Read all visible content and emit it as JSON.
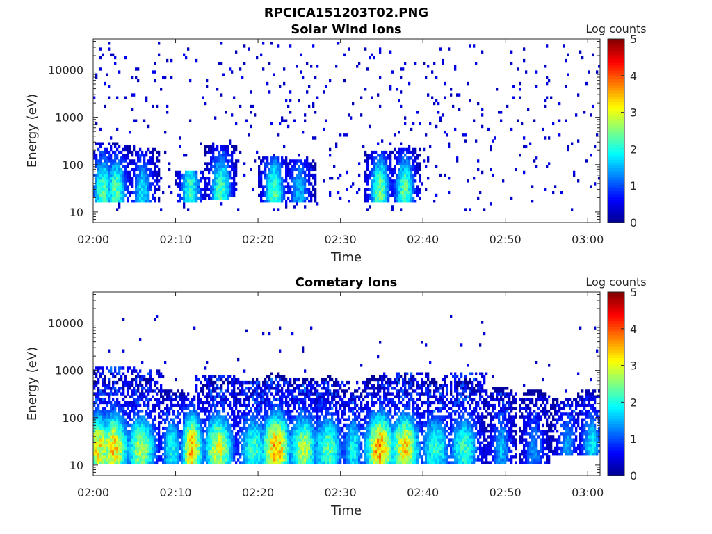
{
  "figure": {
    "title": "RPCICA151203T02.PNG"
  },
  "colormap": [
    "#00008f",
    "#0000ff",
    "#0080ff",
    "#00ffff",
    "#80ff80",
    "#ffff00",
    "#ff8000",
    "#ff0000",
    "#800000"
  ],
  "chart_data": [
    {
      "type": "heatmap",
      "title": "Solar Wind Ions",
      "xlabel": "Time",
      "ylabel": "Energy (eV)",
      "x_ticks": [
        "02:00",
        "02:10",
        "02:20",
        "02:30",
        "02:40",
        "02:50",
        "03:00"
      ],
      "x_tick_minutes": [
        0,
        10,
        20,
        30,
        40,
        50,
        60
      ],
      "xlim_minutes": [
        0,
        61.5
      ],
      "y_ticks": [
        "10",
        "100",
        "1000",
        "10000"
      ],
      "y_tick_values": [
        10,
        100,
        1000,
        10000
      ],
      "ylim": [
        6,
        45000
      ],
      "yscale": "log",
      "colorbar": {
        "label": "Log counts",
        "ticks": [
          "0",
          "1",
          "2",
          "3",
          "4",
          "5"
        ],
        "range": [
          0,
          5
        ]
      },
      "background_noise": {
        "energy_range": [
          10,
          40000
        ],
        "log_counts": 0.2
      },
      "clusters": [
        {
          "t": 1.2,
          "e_low": 20,
          "e_high": 220,
          "peak": 2.3
        },
        {
          "t": 2.8,
          "e_low": 18,
          "e_high": 200,
          "peak": 2.4
        },
        {
          "t": 6.0,
          "e_low": 18,
          "e_high": 180,
          "peak": 1.8
        },
        {
          "t": 11.8,
          "e_low": 20,
          "e_high": 60,
          "peak": 2.2
        },
        {
          "t": 15.5,
          "e_low": 22,
          "e_high": 200,
          "peak": 2.3
        },
        {
          "t": 22.0,
          "e_low": 20,
          "e_high": 120,
          "peak": 2.3
        },
        {
          "t": 25.0,
          "e_low": 20,
          "e_high": 100,
          "peak": 1.6
        },
        {
          "t": 34.8,
          "e_low": 20,
          "e_high": 160,
          "peak": 2.5
        },
        {
          "t": 37.8,
          "e_low": 20,
          "e_high": 170,
          "peak": 2.4
        }
      ]
    },
    {
      "type": "heatmap",
      "title": "Cometary Ions",
      "xlabel": "Time",
      "ylabel": "Energy (eV)",
      "x_ticks": [
        "02:00",
        "02:10",
        "02:20",
        "02:30",
        "02:40",
        "02:50",
        "03:00"
      ],
      "x_tick_minutes": [
        0,
        10,
        20,
        30,
        40,
        50,
        60
      ],
      "xlim_minutes": [
        0,
        61.5
      ],
      "y_ticks": [
        "10",
        "100",
        "1000",
        "10000"
      ],
      "y_tick_values": [
        10,
        100,
        1000,
        10000
      ],
      "ylim": [
        6,
        45000
      ],
      "yscale": "log",
      "colorbar": {
        "label": "Log counts",
        "ticks": [
          "0",
          "1",
          "2",
          "3",
          "4",
          "5"
        ],
        "range": [
          0,
          5
        ]
      },
      "background_noise": {
        "energy_range": [
          200,
          15000
        ],
        "log_counts": 0.2
      },
      "clusters": [
        {
          "t": 0.6,
          "e_low": 12,
          "e_high": 500,
          "peak": 3.2
        },
        {
          "t": 2.5,
          "e_low": 12,
          "e_high": 1200,
          "peak": 3.4
        },
        {
          "t": 5.8,
          "e_low": 12,
          "e_high": 1000,
          "peak": 2.8
        },
        {
          "t": 9.5,
          "e_low": 12,
          "e_high": 300,
          "peak": 2.0
        },
        {
          "t": 12.0,
          "e_low": 12,
          "e_high": 250,
          "peak": 3.6
        },
        {
          "t": 15.2,
          "e_low": 12,
          "e_high": 800,
          "peak": 3.0
        },
        {
          "t": 19.5,
          "e_low": 12,
          "e_high": 600,
          "peak": 2.2
        },
        {
          "t": 22.2,
          "e_low": 12,
          "e_high": 700,
          "peak": 3.6
        },
        {
          "t": 25.5,
          "e_low": 12,
          "e_high": 500,
          "peak": 2.8
        },
        {
          "t": 28.5,
          "e_low": 12,
          "e_high": 600,
          "peak": 2.4
        },
        {
          "t": 31.5,
          "e_low": 12,
          "e_high": 300,
          "peak": 2.0
        },
        {
          "t": 34.8,
          "e_low": 12,
          "e_high": 600,
          "peak": 3.7
        },
        {
          "t": 37.8,
          "e_low": 12,
          "e_high": 900,
          "peak": 3.3
        },
        {
          "t": 41.5,
          "e_low": 12,
          "e_high": 500,
          "peak": 2.2
        },
        {
          "t": 45.0,
          "e_low": 12,
          "e_high": 900,
          "peak": 2.2
        },
        {
          "t": 49.5,
          "e_low": 12,
          "e_high": 350,
          "peak": 1.6
        },
        {
          "t": 53.5,
          "e_low": 12,
          "e_high": 300,
          "peak": 1.4
        },
        {
          "t": 57.5,
          "e_low": 20,
          "e_high": 200,
          "peak": 1.4
        },
        {
          "t": 60.5,
          "e_low": 20,
          "e_high": 300,
          "peak": 1.8
        }
      ]
    }
  ]
}
